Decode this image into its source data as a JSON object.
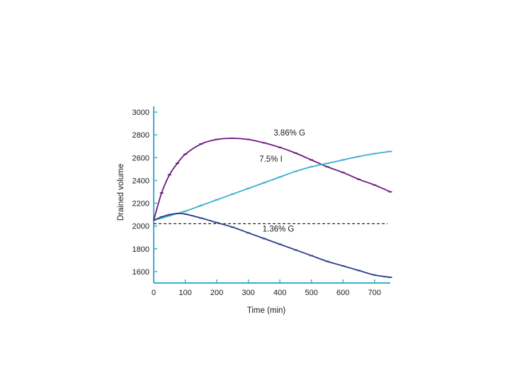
{
  "chart_data": {
    "type": "line",
    "title": "",
    "xlabel": "Time (min)",
    "ylabel": "Drained volume",
    "xlim": [
      0,
      750
    ],
    "ylim": [
      1500,
      3050
    ],
    "x_ticks": [
      0,
      100,
      200,
      300,
      400,
      500,
      600,
      700
    ],
    "y_ticks": [
      1600,
      1800,
      2000,
      2200,
      2400,
      2600,
      2800,
      3000
    ],
    "grid": false,
    "axis_color": "#3aaecd",
    "reference_line": {
      "y": 2020,
      "style": "dashed",
      "color": "#1a1a1a"
    },
    "series": [
      {
        "name": "3.86% G",
        "color": "#6a1b7a",
        "x": [
          0,
          25,
          50,
          75,
          100,
          150,
          200,
          250,
          300,
          350,
          400,
          450,
          500,
          550,
          600,
          650,
          700,
          750
        ],
        "y": [
          2050,
          2290,
          2450,
          2550,
          2630,
          2720,
          2760,
          2770,
          2760,
          2730,
          2690,
          2640,
          2580,
          2520,
          2470,
          2410,
          2360,
          2300
        ]
      },
      {
        "name": "7.5% I",
        "color": "#3aaecd",
        "x": [
          0,
          50,
          100,
          150,
          200,
          250,
          300,
          350,
          400,
          450,
          500,
          550,
          600,
          650,
          700,
          750
        ],
        "y": [
          2050,
          2090,
          2130,
          2180,
          2230,
          2280,
          2330,
          2380,
          2430,
          2480,
          2520,
          2550,
          2580,
          2610,
          2635,
          2655
        ]
      },
      {
        "name": "1.36% G",
        "color": "#2c3e8c",
        "x": [
          0,
          25,
          50,
          75,
          100,
          150,
          200,
          250,
          300,
          350,
          400,
          450,
          500,
          550,
          600,
          650,
          700,
          750
        ],
        "y": [
          2050,
          2080,
          2100,
          2110,
          2105,
          2070,
          2030,
          1990,
          1940,
          1890,
          1840,
          1790,
          1740,
          1690,
          1650,
          1610,
          1570,
          1550
        ]
      }
    ],
    "annotations": [
      {
        "text": "3.86% G",
        "x": 380,
        "y": 2795
      },
      {
        "text": "7.5% I",
        "x": 335,
        "y": 2565
      },
      {
        "text": "1.36% G",
        "x": 345,
        "y": 1950
      }
    ]
  }
}
